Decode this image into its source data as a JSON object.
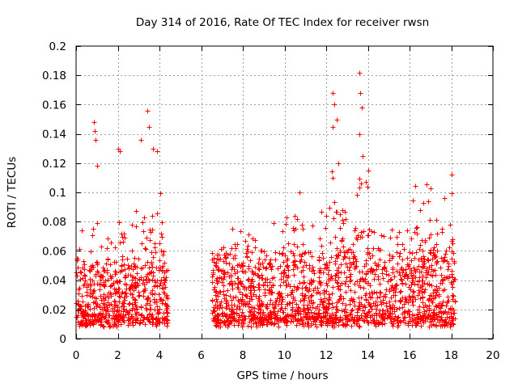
{
  "chart_data": {
    "type": "scatter",
    "title": "Day 314 of 2016, Rate Of TEC Index for receiver rwsn",
    "xlabel": "GPS time / hours",
    "ylabel": "ROTI / TECUs",
    "xlim": [
      0,
      20
    ],
    "ylim": [
      0,
      0.2
    ],
    "xticks": [
      "0",
      "2",
      "4",
      "6",
      "8",
      "10",
      "12",
      "14",
      "16",
      "18",
      "20"
    ],
    "yticks": [
      "0",
      "0.02",
      "0.04",
      "0.06",
      "0.08",
      "0.1",
      "0.12",
      "0.14",
      "0.16",
      "0.18",
      "0.2"
    ],
    "grid": true,
    "marker": "+",
    "series": [
      {
        "name": "rwsn",
        "color": "#ff0000",
        "segments": [
          {
            "x_start": 0.0,
            "x_end": 4.4,
            "base_range": [
              0.008,
              0.06
            ]
          },
          {
            "x_start": 6.5,
            "x_end": 18.2,
            "base_range": [
              0.008,
              0.07
            ]
          }
        ],
        "notable_points": [
          {
            "x": 0.85,
            "y": 0.148
          },
          {
            "x": 0.9,
            "y": 0.142
          },
          {
            "x": 0.95,
            "y": 0.136
          },
          {
            "x": 1.0,
            "y": 0.118
          },
          {
            "x": 2.0,
            "y": 0.13
          },
          {
            "x": 2.1,
            "y": 0.128
          },
          {
            "x": 3.1,
            "y": 0.136
          },
          {
            "x": 3.4,
            "y": 0.156
          },
          {
            "x": 3.5,
            "y": 0.145
          },
          {
            "x": 3.7,
            "y": 0.13
          },
          {
            "x": 3.9,
            "y": 0.128
          },
          {
            "x": 12.3,
            "y": 0.168
          },
          {
            "x": 12.4,
            "y": 0.16
          },
          {
            "x": 12.5,
            "y": 0.15
          },
          {
            "x": 12.3,
            "y": 0.145
          },
          {
            "x": 12.6,
            "y": 0.12
          },
          {
            "x": 13.6,
            "y": 0.182
          },
          {
            "x": 13.65,
            "y": 0.168
          },
          {
            "x": 13.7,
            "y": 0.158
          },
          {
            "x": 13.6,
            "y": 0.14
          },
          {
            "x": 13.75,
            "y": 0.125
          },
          {
            "x": 14.0,
            "y": 0.115
          },
          {
            "x": 17.0,
            "y": 0.103
          },
          {
            "x": 18.0,
            "y": 0.112
          },
          {
            "x": 10.7,
            "y": 0.1
          },
          {
            "x": 10.1,
            "y": 0.083
          }
        ]
      }
    ]
  }
}
